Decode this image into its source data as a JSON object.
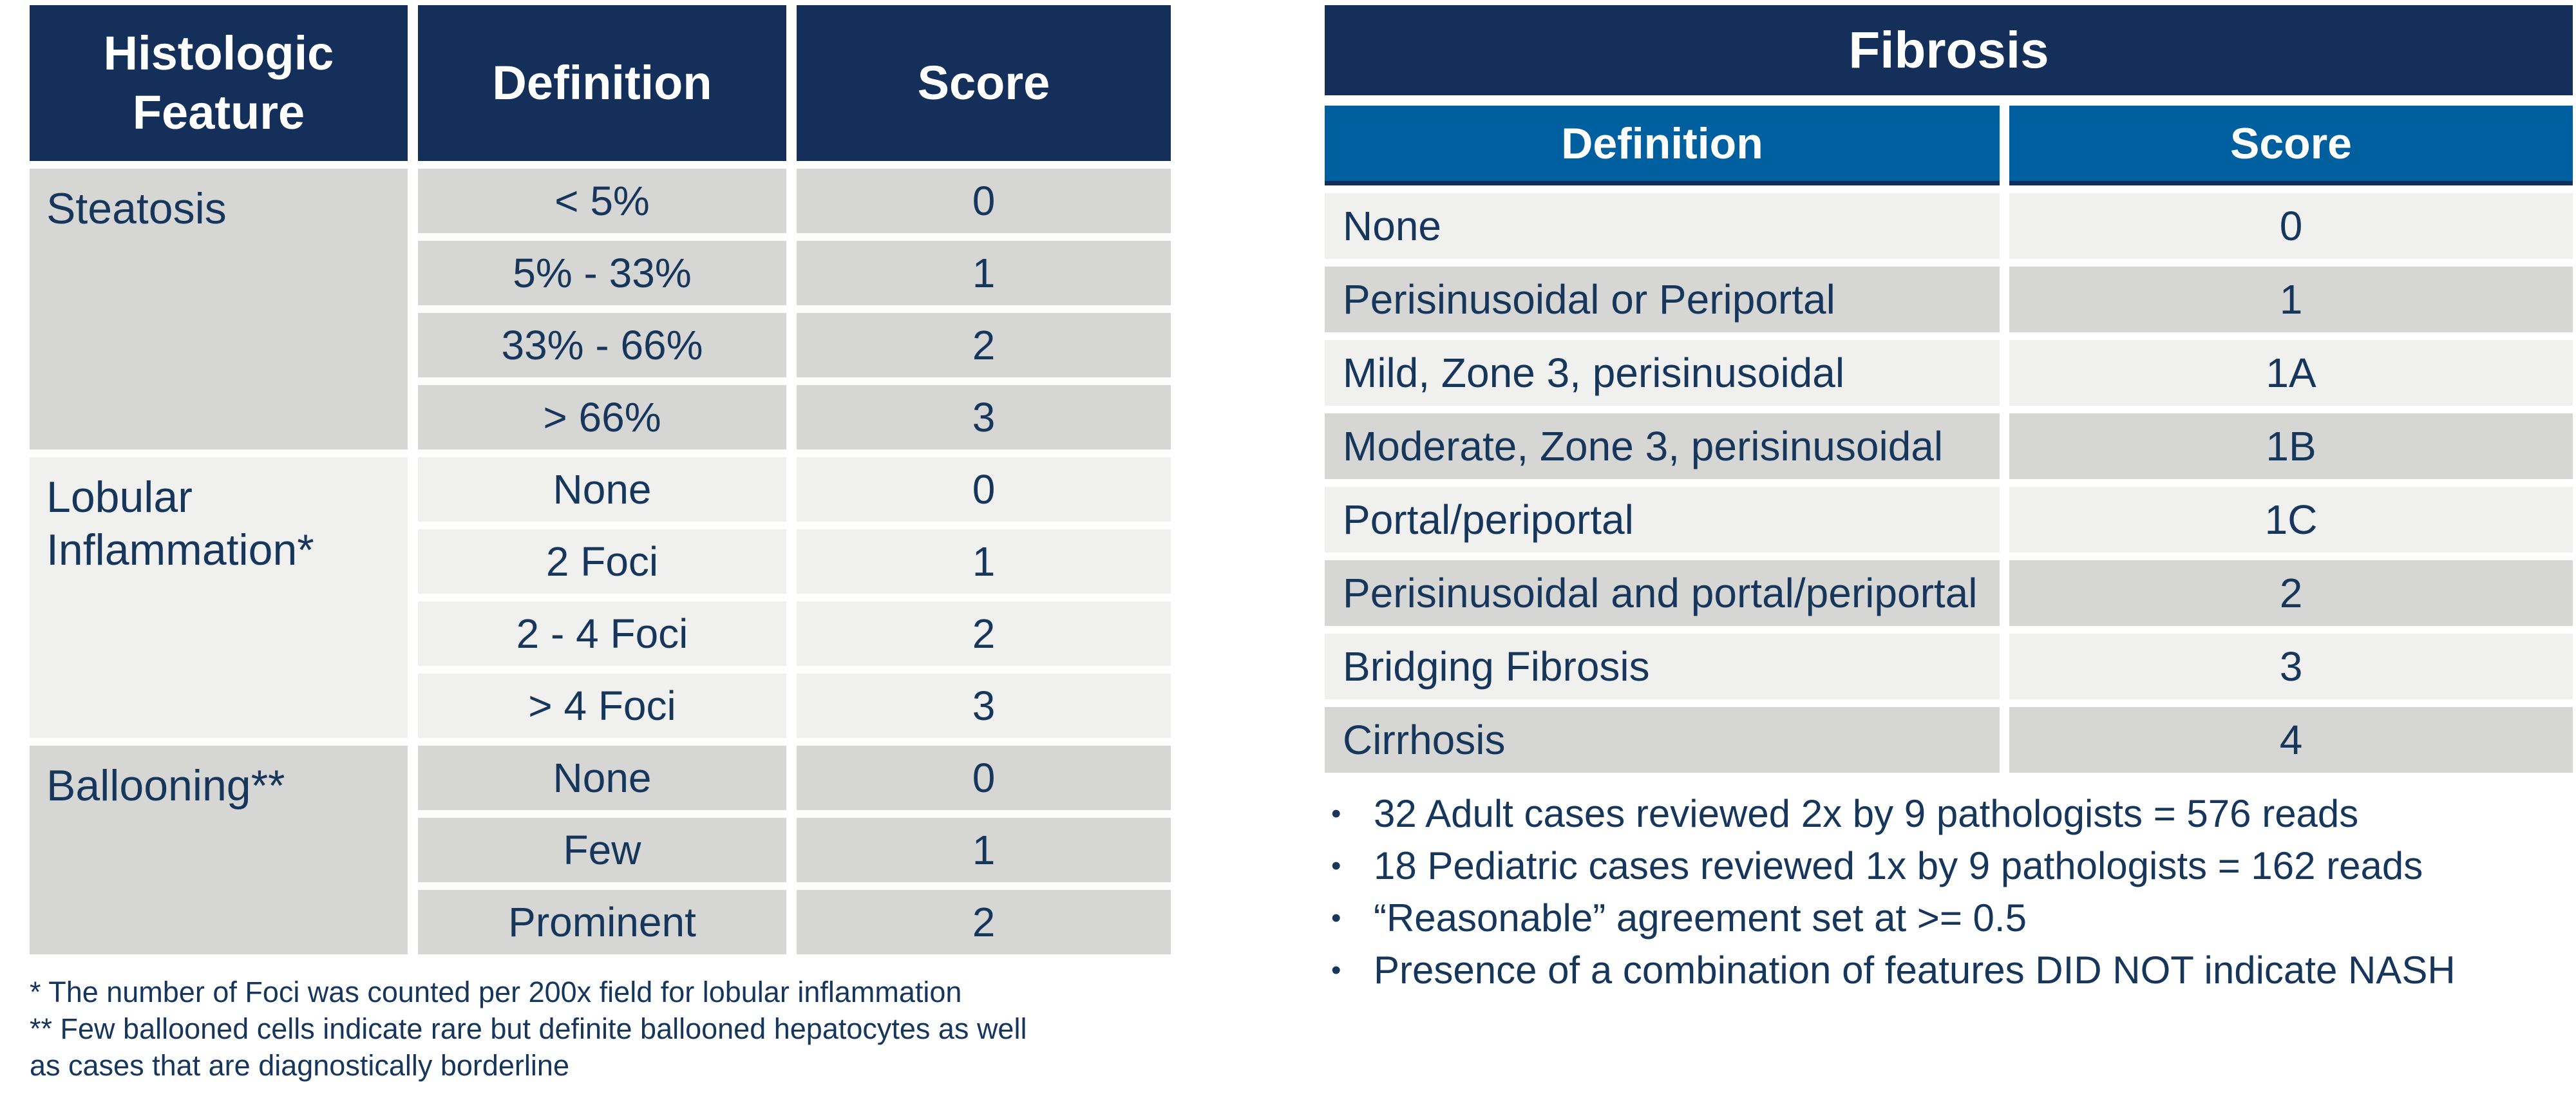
{
  "colors": {
    "header_navy": "#14305a",
    "subheader_blue": "#005f9e",
    "row_gray": "#d6d6d4",
    "row_light": "#f0f0ee",
    "text_navy": "#17365c"
  },
  "left_table": {
    "headers": {
      "feature": "Histologic Feature",
      "definition": "Definition",
      "score": "Score"
    },
    "groups": [
      {
        "feature": "Steatosis",
        "rows": [
          {
            "definition": "< 5%",
            "score": "0"
          },
          {
            "definition": "5% - 33%",
            "score": "1"
          },
          {
            "definition": "33% - 66%",
            "score": "2"
          },
          {
            "definition": "> 66%",
            "score": "3"
          }
        ]
      },
      {
        "feature": "Lobular Inflammation*",
        "rows": [
          {
            "definition": "None",
            "score": "0"
          },
          {
            "definition": "2 Foci",
            "score": "1"
          },
          {
            "definition": "2 - 4 Foci",
            "score": "2"
          },
          {
            "definition": "> 4 Foci",
            "score": "3"
          }
        ]
      },
      {
        "feature": "Ballooning**",
        "rows": [
          {
            "definition": "None",
            "score": "0"
          },
          {
            "definition": "Few",
            "score": "1"
          },
          {
            "definition": "Prominent",
            "score": "2"
          }
        ]
      }
    ],
    "footnote_lines": [
      "* The number of Foci was counted per 200x field for lobular inflammation",
      "** Few ballooned cells indicate rare but definite ballooned hepatocytes as well",
      "as cases that are diagnostically borderline"
    ]
  },
  "right_table": {
    "title": "Fibrosis",
    "headers": {
      "definition": "Definition",
      "score": "Score"
    },
    "rows": [
      {
        "definition": "None",
        "score": "0"
      },
      {
        "definition": "Perisinusoidal or Periportal",
        "score": "1"
      },
      {
        "definition": "Mild, Zone 3, perisinusoidal",
        "score": "1A"
      },
      {
        "definition": "Moderate, Zone 3, perisinusoidal",
        "score": "1B"
      },
      {
        "definition": "Portal/periportal",
        "score": "1C"
      },
      {
        "definition": "Perisinusoidal and portal/periportal",
        "score": "2"
      },
      {
        "definition": "Bridging Fibrosis",
        "score": "3"
      },
      {
        "definition": "Cirrhosis",
        "score": "4"
      }
    ]
  },
  "bullets": {
    "marker": "•",
    "items": [
      "32 Adult cases reviewed 2x by 9 pathologists = 576 reads",
      "18 Pediatric cases reviewed 1x by 9 pathologists = 162 reads",
      "“Reasonable” agreement set at >= 0.5",
      "Presence of a combination of features DID NOT indicate NASH"
    ]
  }
}
